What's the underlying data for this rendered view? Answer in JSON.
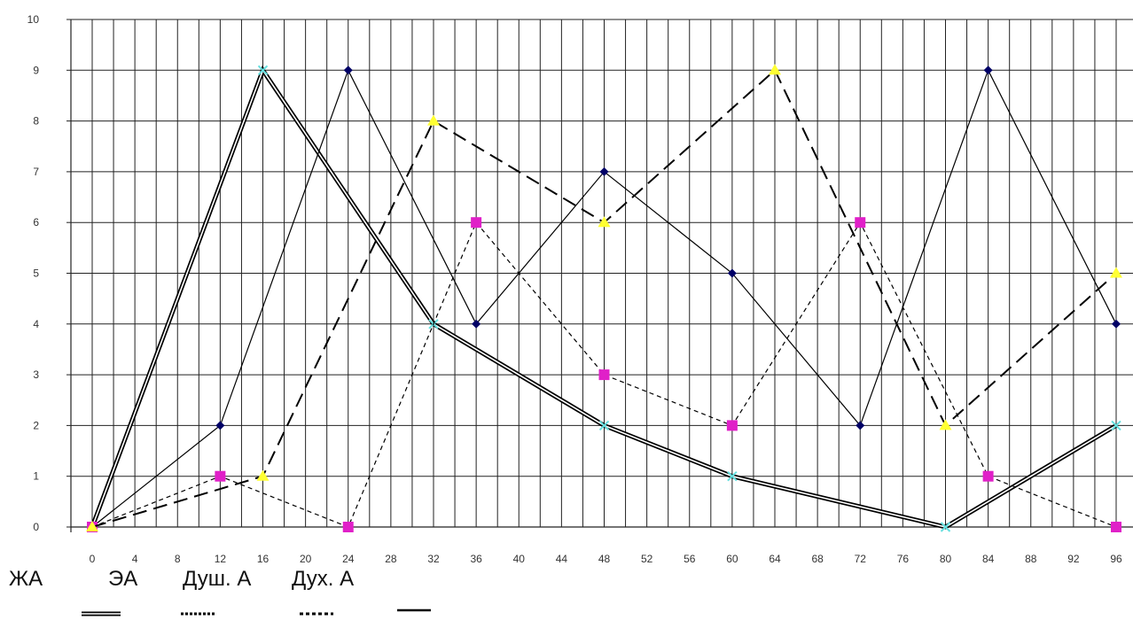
{
  "chart_data": {
    "type": "line",
    "title": "",
    "xlabel": "",
    "ylabel": "",
    "x": [
      0,
      12,
      16,
      24,
      32,
      36,
      48,
      60,
      64,
      72,
      80,
      84,
      96
    ],
    "xticks": [
      0,
      4,
      8,
      12,
      16,
      20,
      24,
      28,
      32,
      36,
      40,
      44,
      48,
      52,
      56,
      60,
      64,
      68,
      72,
      76,
      80,
      84,
      88,
      92,
      96
    ],
    "yticks": [
      0,
      1,
      2,
      3,
      4,
      5,
      6,
      7,
      8,
      9,
      10
    ],
    "xlim": [
      0,
      96
    ],
    "ylim": [
      0,
      10
    ],
    "grid": true,
    "series": [
      {
        "name": "ЖА",
        "style": "double",
        "color": "#000000",
        "marker": "x",
        "marker_color": "#66e0e0",
        "points": [
          [
            0,
            0
          ],
          [
            16,
            9
          ],
          [
            32,
            4
          ],
          [
            48,
            2
          ],
          [
            60,
            1
          ],
          [
            80,
            0
          ],
          [
            96,
            2
          ]
        ]
      },
      {
        "name": "ЭА",
        "style": "solid-thin",
        "color": "#000000",
        "marker": "diamond",
        "marker_color": "#000066",
        "points": [
          [
            0,
            0
          ],
          [
            12,
            2
          ],
          [
            24,
            9
          ],
          [
            36,
            4
          ],
          [
            48,
            7
          ],
          [
            60,
            5
          ],
          [
            72,
            2
          ],
          [
            84,
            9
          ],
          [
            96,
            4
          ]
        ]
      },
      {
        "name": "Душ. А",
        "style": "short-dash",
        "color": "#000000",
        "marker": "square",
        "marker_color": "#e020c8",
        "points": [
          [
            0,
            0
          ],
          [
            12,
            1
          ],
          [
            24,
            0
          ],
          [
            36,
            6
          ],
          [
            48,
            3
          ],
          [
            60,
            2
          ],
          [
            72,
            6
          ],
          [
            84,
            1
          ],
          [
            96,
            0
          ]
        ]
      },
      {
        "name": "Дух. А",
        "style": "long-dash",
        "color": "#000000",
        "marker": "triangle",
        "marker_color": "#ffff33",
        "points": [
          [
            0,
            0
          ],
          [
            16,
            1
          ],
          [
            32,
            8
          ],
          [
            48,
            6
          ],
          [
            64,
            9
          ],
          [
            80,
            2
          ],
          [
            96,
            5
          ]
        ]
      }
    ],
    "legend_position": "bottom-left"
  }
}
